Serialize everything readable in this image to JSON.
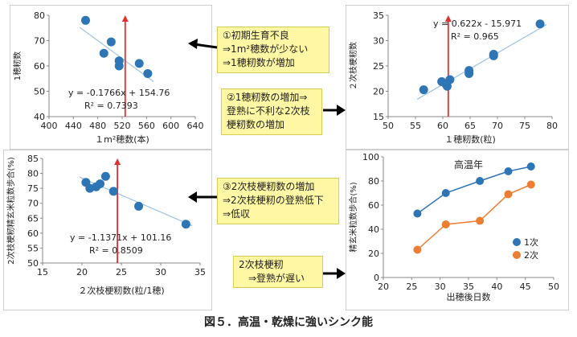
{
  "figure_caption": "図５．高温・乾燥に強いシンク能",
  "notes": [
    {
      "lines": [
        "①初期生育不良",
        "⇒1m²穂数が少ない",
        "⇒1穂籾数が増加"
      ]
    },
    {
      "lines": [
        "②1穂籾数の増加⇒",
        "登熟に不利な2次枝",
        "梗籾数の増加"
      ]
    },
    {
      "lines": [
        "③2次枝梗籾数の増加",
        "⇒2次枝梗籾の登熟低下",
        "⇒低収"
      ]
    },
    {
      "lines": [
        "2次枝梗籾",
        "　⇒登熟が遅い"
      ]
    }
  ],
  "chart_data": [
    {
      "type": "scatter",
      "xlabel": "１m²穂数(本)",
      "ylabel": "1穂籾数",
      "xlim": [
        400,
        640
      ],
      "ylim": [
        40,
        80
      ],
      "xticks": [
        "400",
        "440",
        "480",
        "520",
        "560",
        "600",
        "640"
      ],
      "yticks": [
        "40",
        "50",
        "60",
        "70",
        "80"
      ],
      "points": [
        [
          460,
          78
        ],
        [
          490,
          65
        ],
        [
          502,
          69.5
        ],
        [
          515,
          62
        ],
        [
          515,
          60
        ],
        [
          548,
          61
        ],
        [
          562,
          57
        ]
      ],
      "trendline": {
        "slope": -0.1766,
        "intercept": 154.76
      },
      "equation": "y = -0.1766x + 154.76",
      "r2": "R² = 0.7393",
      "marker_x": 525,
      "color": "#2e75b6"
    },
    {
      "type": "scatter",
      "xlabel": "１穂籾数(粒)",
      "ylabel": "２次枝梗籾数",
      "xlim": [
        50,
        80
      ],
      "ylim": [
        15,
        35
      ],
      "xticks": [
        "50",
        "55",
        "60",
        "65",
        "70",
        "75",
        "80"
      ],
      "yticks": [
        "15",
        "20",
        "25",
        "30",
        "35"
      ],
      "points": [
        [
          56.5,
          20.3
        ],
        [
          59.8,
          21.9
        ],
        [
          60.5,
          21.5
        ],
        [
          60.8,
          21.0
        ],
        [
          61.3,
          22.3
        ],
        [
          64.8,
          24.1
        ],
        [
          64.8,
          23.5
        ],
        [
          69.3,
          27.3
        ],
        [
          69.3,
          27.0
        ],
        [
          77.8,
          33.3
        ]
      ],
      "trendline": {
        "slope": 0.622,
        "intercept": -15.971
      },
      "equation": "y = 0.622x - 15.971",
      "r2": "R² = 0.965",
      "marker_x": 61,
      "color": "#2e75b6"
    },
    {
      "type": "scatter",
      "xlabel": "２次枝梗籾数(粒/1穂)",
      "ylabel": "2次枝梗籾精玄米粒数歩合(%)",
      "xlim": [
        15,
        35
      ],
      "ylim": [
        50,
        85
      ],
      "xticks": [
        "15",
        "20",
        "25",
        "30",
        "35"
      ],
      "yticks": [
        "50",
        "55",
        "60",
        "65",
        "70",
        "75",
        "80",
        "85"
      ],
      "points": [
        [
          20.5,
          77
        ],
        [
          21.0,
          75
        ],
        [
          21.8,
          75.5
        ],
        [
          22.3,
          76.5
        ],
        [
          23.0,
          79
        ],
        [
          24.0,
          74
        ],
        [
          27.2,
          69
        ],
        [
          33.2,
          63
        ]
      ],
      "trendline": {
        "slope": -1.1371,
        "intercept": 101.16
      },
      "equation": "y = -1.1371x + 101.16",
      "r2": "R² = 0.8509",
      "marker_x": 24.5,
      "color": "#2e75b6"
    },
    {
      "type": "line",
      "title": "高温年",
      "xlabel": "出穂後日数",
      "ylabel": "精玄米粒数歩合(%)",
      "xlim": [
        20,
        50
      ],
      "ylim": [
        0,
        100
      ],
      "xticks": [
        "20",
        "25",
        "30",
        "35",
        "40",
        "45",
        "50"
      ],
      "yticks": [
        "0",
        "20",
        "40",
        "60",
        "80",
        "100"
      ],
      "x": [
        26,
        31,
        37,
        42,
        46
      ],
      "series": [
        {
          "name": "1次",
          "values": [
            53,
            70,
            80,
            88,
            92
          ],
          "color": "#2e75b6"
        },
        {
          "name": "2次",
          "values": [
            23,
            44,
            47,
            69,
            77
          ],
          "color": "#ed7d31"
        }
      ],
      "legend_position": "bottom-right"
    }
  ]
}
